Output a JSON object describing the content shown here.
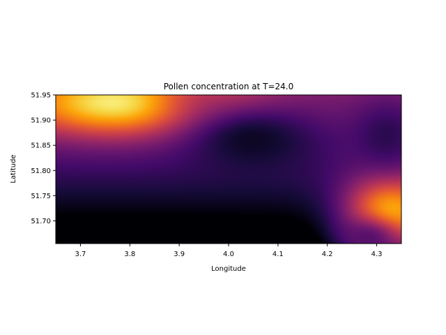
{
  "chart_data": {
    "type": "heatmap",
    "title": "Pollen concentration at T=24.0",
    "xlabel": "Longitude",
    "ylabel": "Latitude",
    "xlim": [
      3.65,
      4.35
    ],
    "ylim": [
      51.655,
      51.95
    ],
    "xticks": [
      "3.7",
      "3.8",
      "3.9",
      "4.0",
      "4.1",
      "4.2",
      "4.3"
    ],
    "yticks": [
      "51.70",
      "51.75",
      "51.80",
      "51.85",
      "51.90",
      "51.95"
    ],
    "colormap": "inferno",
    "value_range": [
      0,
      1
    ],
    "colorbar": false,
    "grid": false,
    "features": [
      {
        "kind": "high",
        "lon": 3.78,
        "lat": 51.935,
        "value": 0.97,
        "spread_lon": 0.14,
        "spread_lat": 0.045
      },
      {
        "kind": "high",
        "lon": 3.98,
        "lat": 51.945,
        "value": 0.55,
        "spread_lon": 0.08,
        "spread_lat": 0.04
      },
      {
        "kind": "high",
        "lon": 4.33,
        "lat": 51.715,
        "value": 0.86,
        "spread_lon": 0.07,
        "spread_lat": 0.06
      },
      {
        "kind": "high",
        "lon": 4.28,
        "lat": 51.665,
        "value": 0.25,
        "spread_lon": 0.05,
        "spread_lat": 0.03
      },
      {
        "kind": "high",
        "lon": 4.32,
        "lat": 51.87,
        "value": 0.15,
        "spread_lon": 0.05,
        "spread_lat": 0.05
      },
      {
        "kind": "high",
        "lon": 4.05,
        "lat": 51.86,
        "value": 0.06,
        "spread_lon": 0.1,
        "spread_lat": 0.05
      }
    ],
    "background_value": 0.34,
    "latitude_gradient": {
      "north_value": 0.38,
      "south_value": -0.3
    }
  }
}
